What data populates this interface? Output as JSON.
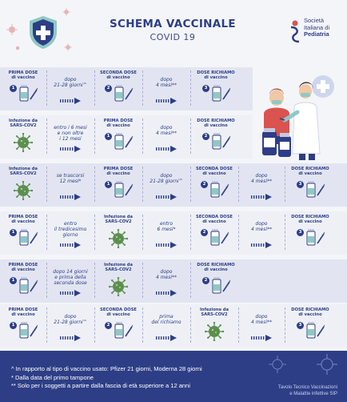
{
  "header": {
    "title": "SCHEMA VACCINALE",
    "subtitle": "COVID 19",
    "logo_line1": "Società",
    "logo_line2": "Italiana di",
    "logo_line3": "Pediatria"
  },
  "rows": [
    {
      "cells": [
        {
          "type": "vaccine",
          "title": "PRIMA DOSE\ndi vaccino",
          "badge": "1"
        },
        {
          "type": "interval",
          "text": "dopo\n21-28 giorni^"
        },
        {
          "type": "vaccine",
          "title": "SECONDA DOSE\ndi vaccino",
          "badge": "2"
        },
        {
          "type": "interval",
          "text": "dopo\n4 mesi**"
        },
        {
          "type": "vaccine",
          "title": "DOSE RICHIAMO\ndi vaccino",
          "badge": "3"
        }
      ]
    },
    {
      "cells": [
        {
          "type": "infection",
          "title": "Infezione da\nSARS-COV2"
        },
        {
          "type": "interval",
          "text": "entro i 6 mesi\ne non oltre\ni 12 mesi"
        },
        {
          "type": "vaccine",
          "title": "PRIMA DOSE\ndi vaccino",
          "badge": "1"
        },
        {
          "type": "interval",
          "text": "dopo\n4 mesi**"
        },
        {
          "type": "vaccine",
          "title": "DOSE RICHIAMO\ndi vaccino",
          "badge": "2"
        }
      ]
    },
    {
      "cells": [
        {
          "type": "infection",
          "title": "Infezione da\nSARS-COV2"
        },
        {
          "type": "interval",
          "text": "se trascorsi\n12 mesi*"
        },
        {
          "type": "vaccine",
          "title": "PRIMA DOSE\ndi vaccino",
          "badge": "1"
        },
        {
          "type": "interval",
          "text": "dopo\n21-28 giorni^"
        },
        {
          "type": "vaccine",
          "title": "SECONDA DOSE\ndi vaccino",
          "badge": "2"
        },
        {
          "type": "interval",
          "text": "dopo\n4 mesi**"
        },
        {
          "type": "vaccine",
          "title": "DOSE RICHIAMO\ndi vaccino",
          "badge": "3"
        }
      ]
    },
    {
      "cells": [
        {
          "type": "vaccine",
          "title": "PRIMA DOSE\ndi vaccino",
          "badge": "1"
        },
        {
          "type": "interval",
          "text": "entro\nil tredicesimo\ngiorno"
        },
        {
          "type": "infection",
          "title": "Infezione da\nSARS-COV2"
        },
        {
          "type": "interval",
          "text": "entro\n6 mesi*"
        },
        {
          "type": "vaccine",
          "title": "SECONDA DOSE\ndi vaccino",
          "badge": "2"
        },
        {
          "type": "interval",
          "text": "dopo\n4 mesi**"
        },
        {
          "type": "vaccine",
          "title": "DOSE RICHIAMO\ndi vaccino",
          "badge": "3"
        }
      ]
    },
    {
      "cells": [
        {
          "type": "vaccine",
          "title": "PRIMA DOSE\ndi vaccino",
          "badge": "1"
        },
        {
          "type": "interval",
          "text": "dopo 14 giorni\ne prima della\nseconda dose"
        },
        {
          "type": "infection",
          "title": "Infezione da\nSARS-COV2"
        },
        {
          "type": "interval",
          "text": "dopo\n4 mesi**"
        },
        {
          "type": "vaccine",
          "title": "DOSE RICHIAMO\ndi vaccino",
          "badge": "2"
        }
      ]
    },
    {
      "cells": [
        {
          "type": "vaccine",
          "title": "PRIMA DOSE\ndi vaccino",
          "badge": "1"
        },
        {
          "type": "interval",
          "text": "dopo\n21-28 giorni^"
        },
        {
          "type": "vaccine",
          "title": "SECONDA DOSE\ndi vaccino",
          "badge": "2"
        },
        {
          "type": "interval",
          "text": "prima\ndel richiamo"
        },
        {
          "type": "infection",
          "title": "Infezione da\nSARS-COV2"
        },
        {
          "type": "interval",
          "text": "dopo\n4 mesi**"
        },
        {
          "type": "vaccine",
          "title": "DOSE RICHIAMO\ndi vaccino",
          "badge": "3"
        }
      ]
    }
  ],
  "footer": {
    "note1": "^ In rapporto al tipo di vaccino usato: Pfizer 21 giorni, Moderna 28 giorni",
    "note2": "* Dalla data del primo tampone",
    "note3": "** Solo per i soggetti a partire dalla fascia di età superiore a 12 anni",
    "credit_line1": "Tavolo Tecnico Vaccinazioni",
    "credit_line2": "e Malattie infettive SIP"
  },
  "colors": {
    "navy": "#2d3e86",
    "row_bg": "#e2e5f1",
    "virus_green": "#5c8f4e",
    "accent_teal": "#8fc9c4"
  }
}
